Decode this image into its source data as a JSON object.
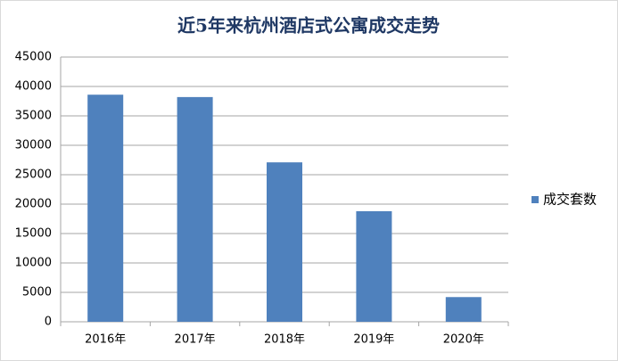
{
  "chart_data": {
    "type": "bar",
    "title": "近5年来杭州酒店式公寓成交走势",
    "categories": [
      "2016年",
      "2017年",
      "2018年",
      "2019年",
      "2020年"
    ],
    "series": [
      {
        "name": "成交套数",
        "color": "#4f81bd",
        "values": [
          38600,
          38200,
          27100,
          18800,
          4200
        ]
      }
    ],
    "ylim": [
      0,
      45000
    ],
    "yticks": [
      0,
      5000,
      10000,
      15000,
      20000,
      25000,
      30000,
      35000,
      40000,
      45000
    ],
    "grid": true,
    "legend": "right"
  }
}
